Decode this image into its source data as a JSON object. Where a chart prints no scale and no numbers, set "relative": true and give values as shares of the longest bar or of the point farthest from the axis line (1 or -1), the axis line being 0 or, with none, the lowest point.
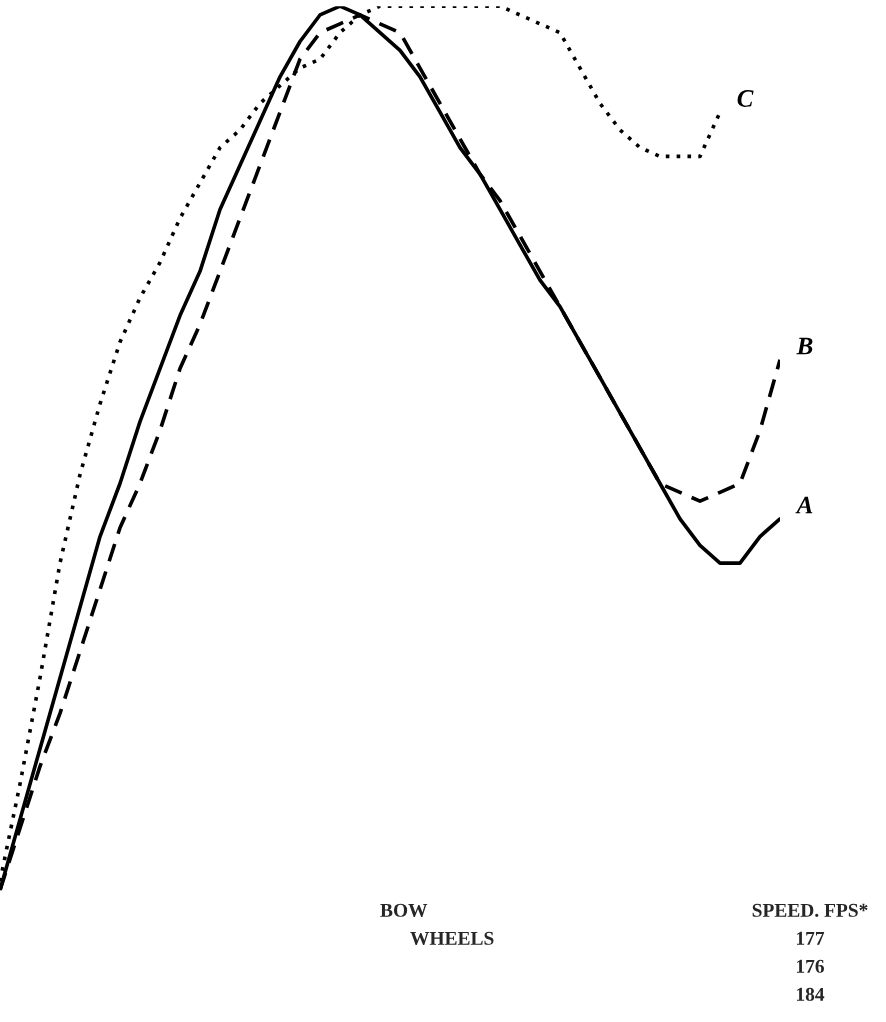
{
  "chart_data": {
    "type": "line",
    "relative": true,
    "legend": false,
    "categories": [
      null,
      null,
      null,
      null,
      null,
      null,
      null,
      null,
      null,
      null,
      null,
      null,
      null,
      null,
      null,
      null,
      null,
      null,
      null,
      null,
      null,
      null,
      null,
      null,
      null,
      null,
      null,
      null,
      null,
      null,
      null,
      null,
      null,
      null,
      null,
      null,
      null,
      null,
      null,
      null
    ],
    "series": [
      {
        "name": "A",
        "color": "#000000",
        "line_style": "solid",
        "values": [
          0,
          0.08,
          0.16,
          0.24,
          0.32,
          0.4,
          0.46,
          0.53,
          0.59,
          0.65,
          0.7,
          0.77,
          0.82,
          0.87,
          0.92,
          0.96,
          0.99,
          1.0,
          0.99,
          0.97,
          0.95,
          0.92,
          0.88,
          0.84,
          0.81,
          0.77,
          0.73,
          0.69,
          0.66,
          0.62,
          0.58,
          0.54,
          0.5,
          0.46,
          0.42,
          0.39,
          0.37,
          0.37,
          0.4,
          0.42
        ]
      },
      {
        "name": "B",
        "color": "#000000",
        "line_style": "dashed",
        "values": [
          0,
          0.07,
          0.14,
          0.2,
          0.27,
          0.34,
          0.41,
          0.46,
          0.52,
          0.59,
          0.64,
          0.7,
          0.76,
          0.82,
          0.88,
          0.94,
          0.97,
          0.98,
          0.99,
          0.98,
          0.97,
          0.93,
          0.89,
          0.85,
          0.81,
          0.78,
          0.74,
          0.7,
          0.66,
          0.62,
          0.58,
          0.54,
          0.5,
          0.46,
          0.45,
          0.44,
          0.45,
          0.46,
          0.52,
          0.6
        ]
      },
      {
        "name": "C",
        "color": "#000000",
        "line_style": "dotted",
        "values": [
          0.01,
          0.12,
          0.24,
          0.37,
          0.47,
          0.55,
          0.62,
          0.67,
          0.71,
          0.76,
          0.8,
          0.84,
          0.86,
          0.89,
          0.91,
          0.93,
          0.94,
          0.97,
          0.99,
          1.0,
          1.0,
          1.0,
          1.0,
          1.0,
          1.0,
          1.0,
          0.99,
          0.98,
          0.97,
          0.93,
          0.89,
          0.86,
          0.84,
          0.83,
          0.83,
          0.83,
          0.88,
          null,
          null,
          null
        ]
      }
    ],
    "annotations": [
      "BOW",
      "WHEELS",
      "SPEED. FPS*",
      "177",
      "176",
      "184"
    ]
  }
}
